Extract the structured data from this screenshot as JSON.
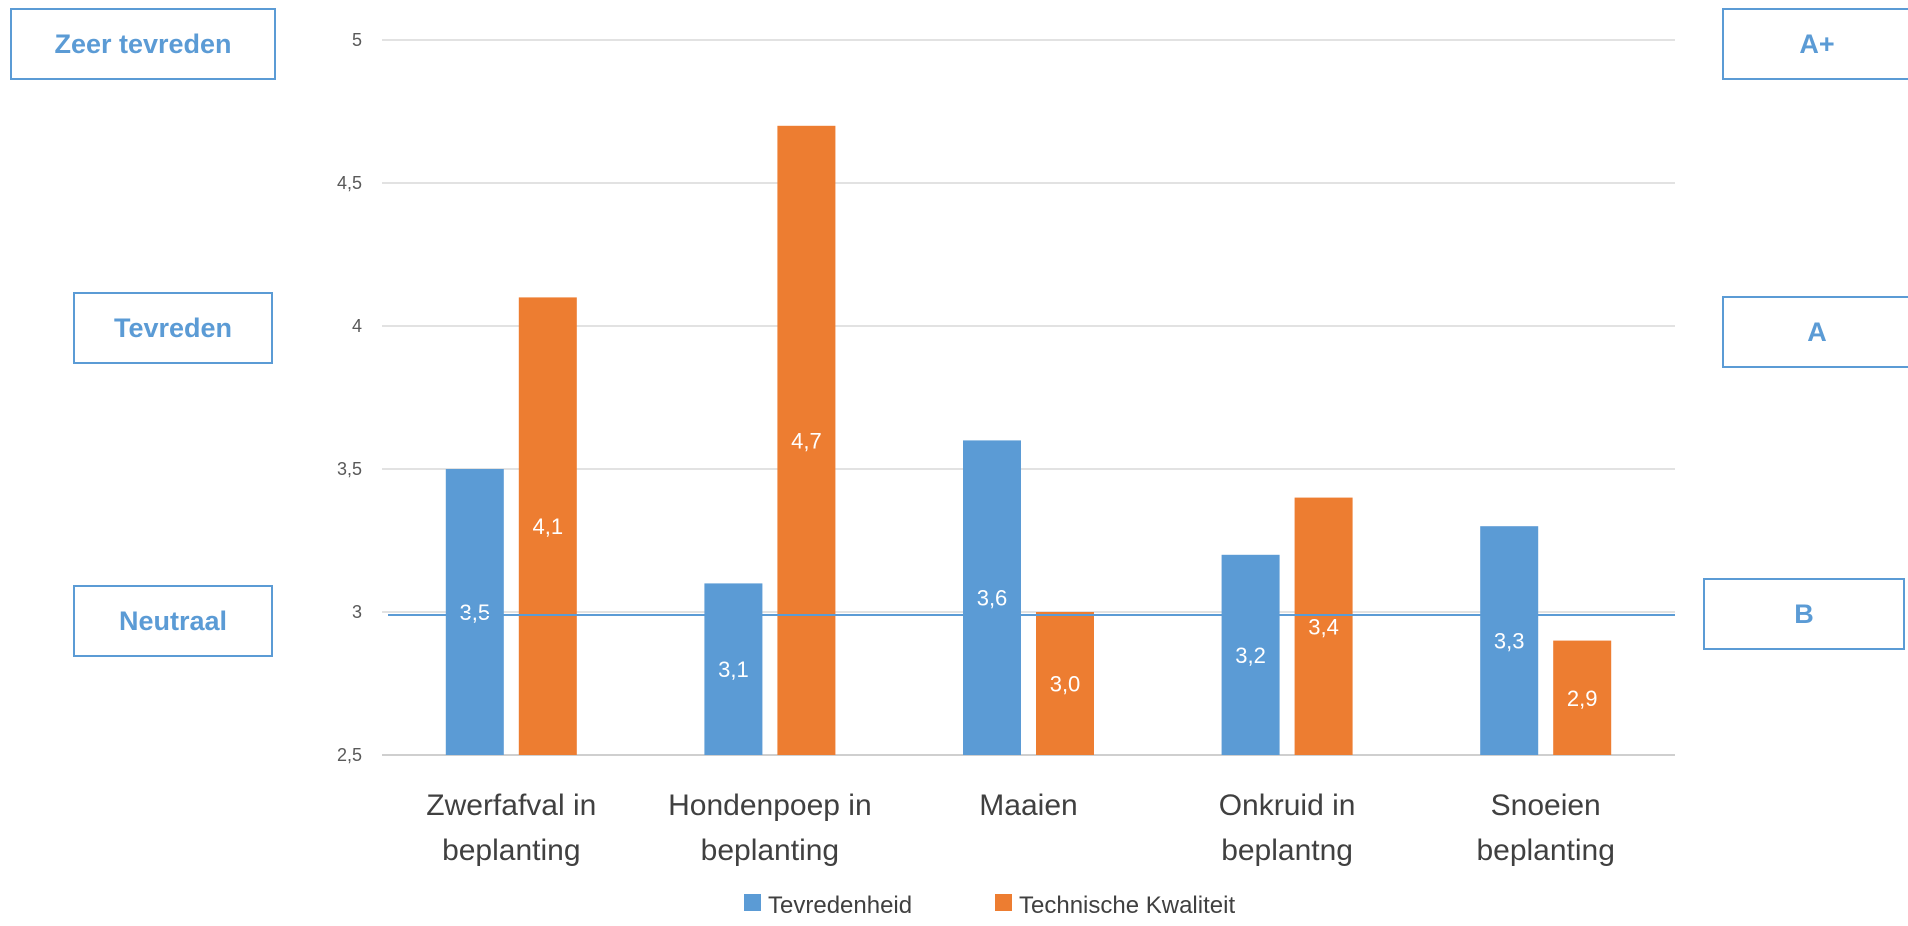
{
  "left_labels": [
    "Zeer tevreden",
    "Tevreden",
    "Neutraal"
  ],
  "right_labels": [
    "A+",
    "A",
    "B"
  ],
  "chart_data": {
    "type": "bar",
    "categories": [
      [
        "Zwerfafval in",
        "beplanting"
      ],
      [
        "Hondenpoep in",
        "beplanting"
      ],
      [
        "Maaien"
      ],
      [
        "Onkruid in",
        "beplantng"
      ],
      [
        "Snoeien",
        "beplanting"
      ]
    ],
    "series": [
      {
        "name": "Tevredenheid",
        "color": "#5b9bd5",
        "values": [
          3.5,
          3.1,
          3.6,
          3.2,
          3.3
        ],
        "labels": [
          "3,5",
          "3,1",
          "3,6",
          "3,2",
          "3,3"
        ]
      },
      {
        "name": "Technische Kwaliteit",
        "color": "#ed7d31",
        "values": [
          4.1,
          4.7,
          3.0,
          3.4,
          2.9
        ],
        "labels": [
          "4,1",
          "4,7",
          "3,0",
          "3,4",
          "2,9"
        ]
      }
    ],
    "ylim": [
      2.5,
      5
    ],
    "yticks": [
      2.5,
      3,
      3.5,
      4,
      4.5,
      5
    ],
    "ytick_labels": [
      "2,5",
      "3",
      "3,5",
      "4",
      "4,5",
      "5"
    ],
    "reference_line": 3,
    "grid": true,
    "legend": "bottom",
    "title": "",
    "xlabel": "",
    "ylabel": ""
  }
}
